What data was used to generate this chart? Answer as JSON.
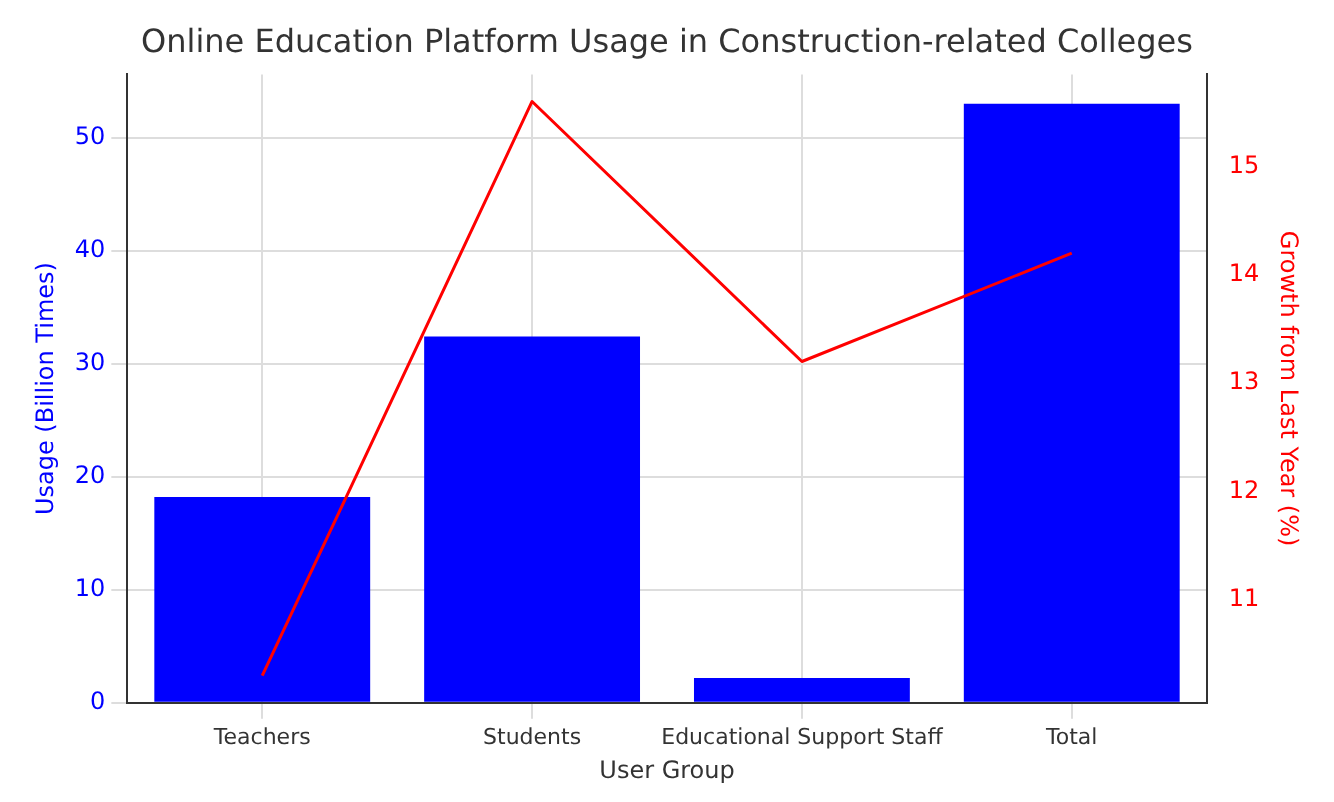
{
  "chart_data": {
    "type": "bar",
    "title": "Online Education Platform Usage in Construction-related Colleges",
    "xlabel": "User Group",
    "ylabel": "Usage (Billion Times)",
    "y2label": "Growth from Last Year (%)",
    "categories": [
      "Teachers",
      "Students",
      "Educational Support Staff",
      "Total"
    ],
    "series": [
      {
        "color": "#0000ff",
        "values": [
          18.2,
          32.4,
          2.2,
          53
        ]
      },
      {
        "type": "line",
        "axis": "y2",
        "color": "#ff0000",
        "values": [
          10.3,
          15.6,
          13.2,
          14.2
        ]
      }
    ],
    "ylim": [
      0,
      55.6
    ],
    "yticks": [
      0,
      10,
      20,
      30,
      40,
      50
    ],
    "y2lim": [
      10.05,
      15.85
    ],
    "y2ticks": [
      11,
      12,
      13,
      14,
      15
    ],
    "grid": true,
    "legend": false
  }
}
